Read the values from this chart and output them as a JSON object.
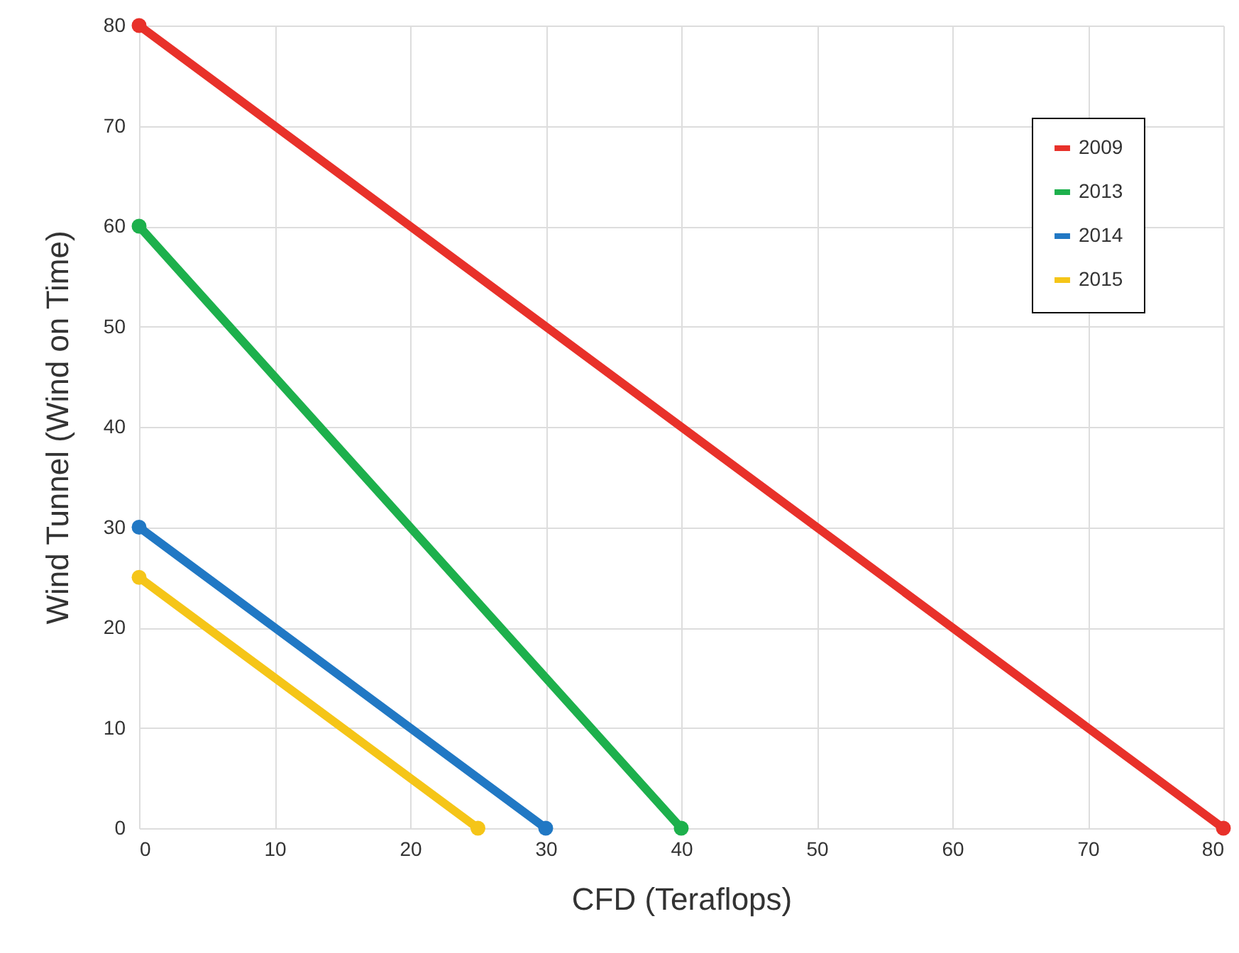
{
  "chart_data": {
    "type": "line",
    "xlabel": "CFD (Teraflops)",
    "ylabel": "Wind Tunnel (Wind on Time)",
    "xlim": [
      0,
      80
    ],
    "ylim": [
      0,
      80
    ],
    "xticks": [
      0,
      10,
      20,
      30,
      40,
      50,
      60,
      70,
      80
    ],
    "yticks": [
      0,
      10,
      20,
      30,
      40,
      50,
      60,
      70,
      80
    ],
    "grid": true,
    "legend": "top right",
    "marker": "circle",
    "line_style": "solid",
    "series": [
      {
        "name": "2009",
        "color": "#e8312a",
        "x": [
          0,
          80
        ],
        "values": [
          80,
          0
        ]
      },
      {
        "name": "2013",
        "color": "#1db04c",
        "x": [
          0,
          40
        ],
        "values": [
          60,
          0
        ]
      },
      {
        "name": "2014",
        "color": "#2178c4",
        "x": [
          0,
          30
        ],
        "values": [
          30,
          0
        ]
      },
      {
        "name": "2015",
        "color": "#f5c518",
        "x": [
          0,
          25
        ],
        "values": [
          25,
          0
        ]
      }
    ]
  }
}
